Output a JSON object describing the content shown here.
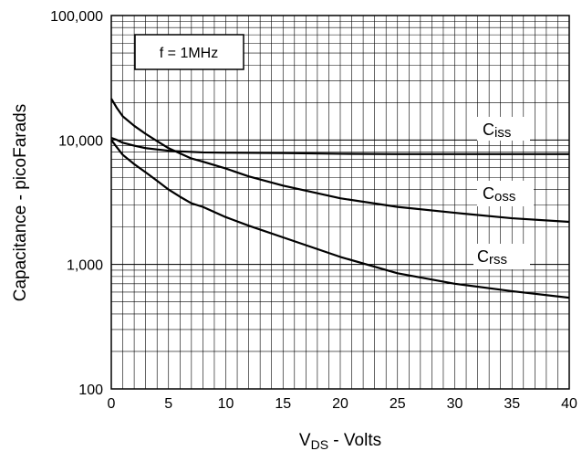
{
  "chart_data": {
    "type": "line",
    "title": "",
    "xlabel": {
      "main": "V",
      "sub": "DS",
      "rest": " - Volts"
    },
    "ylabel": "Capacitance - picoFarads",
    "xlim": [
      0,
      40
    ],
    "ylim": [
      100,
      100000
    ],
    "yscale": "log",
    "grid": true,
    "x_ticks": [
      0,
      5,
      10,
      15,
      20,
      25,
      30,
      35,
      40
    ],
    "x_tick_labels": [
      "0",
      "5",
      "10",
      "15",
      "20",
      "25",
      "30",
      "35",
      "40"
    ],
    "y_ticks": [
      100,
      1000,
      10000,
      100000
    ],
    "y_tick_labels": [
      "100",
      "1,000",
      "10,000",
      "100,000"
    ],
    "annotation": "f = 1MHz",
    "series": [
      {
        "name": "Ciss",
        "label_main": "C",
        "label_sub": "iss",
        "x": [
          0,
          0.5,
          1,
          2,
          3,
          4,
          5,
          6,
          8,
          10,
          15,
          20,
          25,
          30,
          35,
          40
        ],
        "y": [
          10400,
          10000,
          9500,
          9000,
          8600,
          8400,
          8200,
          8100,
          7950,
          7900,
          7850,
          7750,
          7700,
          7700,
          7700,
          7700
        ]
      },
      {
        "name": "Coss",
        "label_main": "C",
        "label_sub": "oss",
        "x": [
          0,
          0.5,
          1,
          2,
          3,
          4,
          5,
          6,
          7,
          8,
          10,
          12,
          15,
          20,
          25,
          30,
          35,
          40
        ],
        "y": [
          21500,
          18000,
          15500,
          13000,
          11200,
          9800,
          8600,
          7800,
          7100,
          6700,
          5900,
          5100,
          4300,
          3400,
          2900,
          2600,
          2350,
          2200
        ]
      },
      {
        "name": "Crss",
        "label_main": "C",
        "label_sub": "rss",
        "x": [
          0,
          0.5,
          1,
          2,
          3,
          4,
          5,
          6,
          7,
          8,
          10,
          12,
          15,
          20,
          25,
          30,
          35,
          40
        ],
        "y": [
          10000,
          8700,
          7600,
          6400,
          5500,
          4700,
          4000,
          3500,
          3100,
          2900,
          2400,
          2050,
          1650,
          1150,
          850,
          700,
          610,
          540
        ]
      }
    ]
  }
}
